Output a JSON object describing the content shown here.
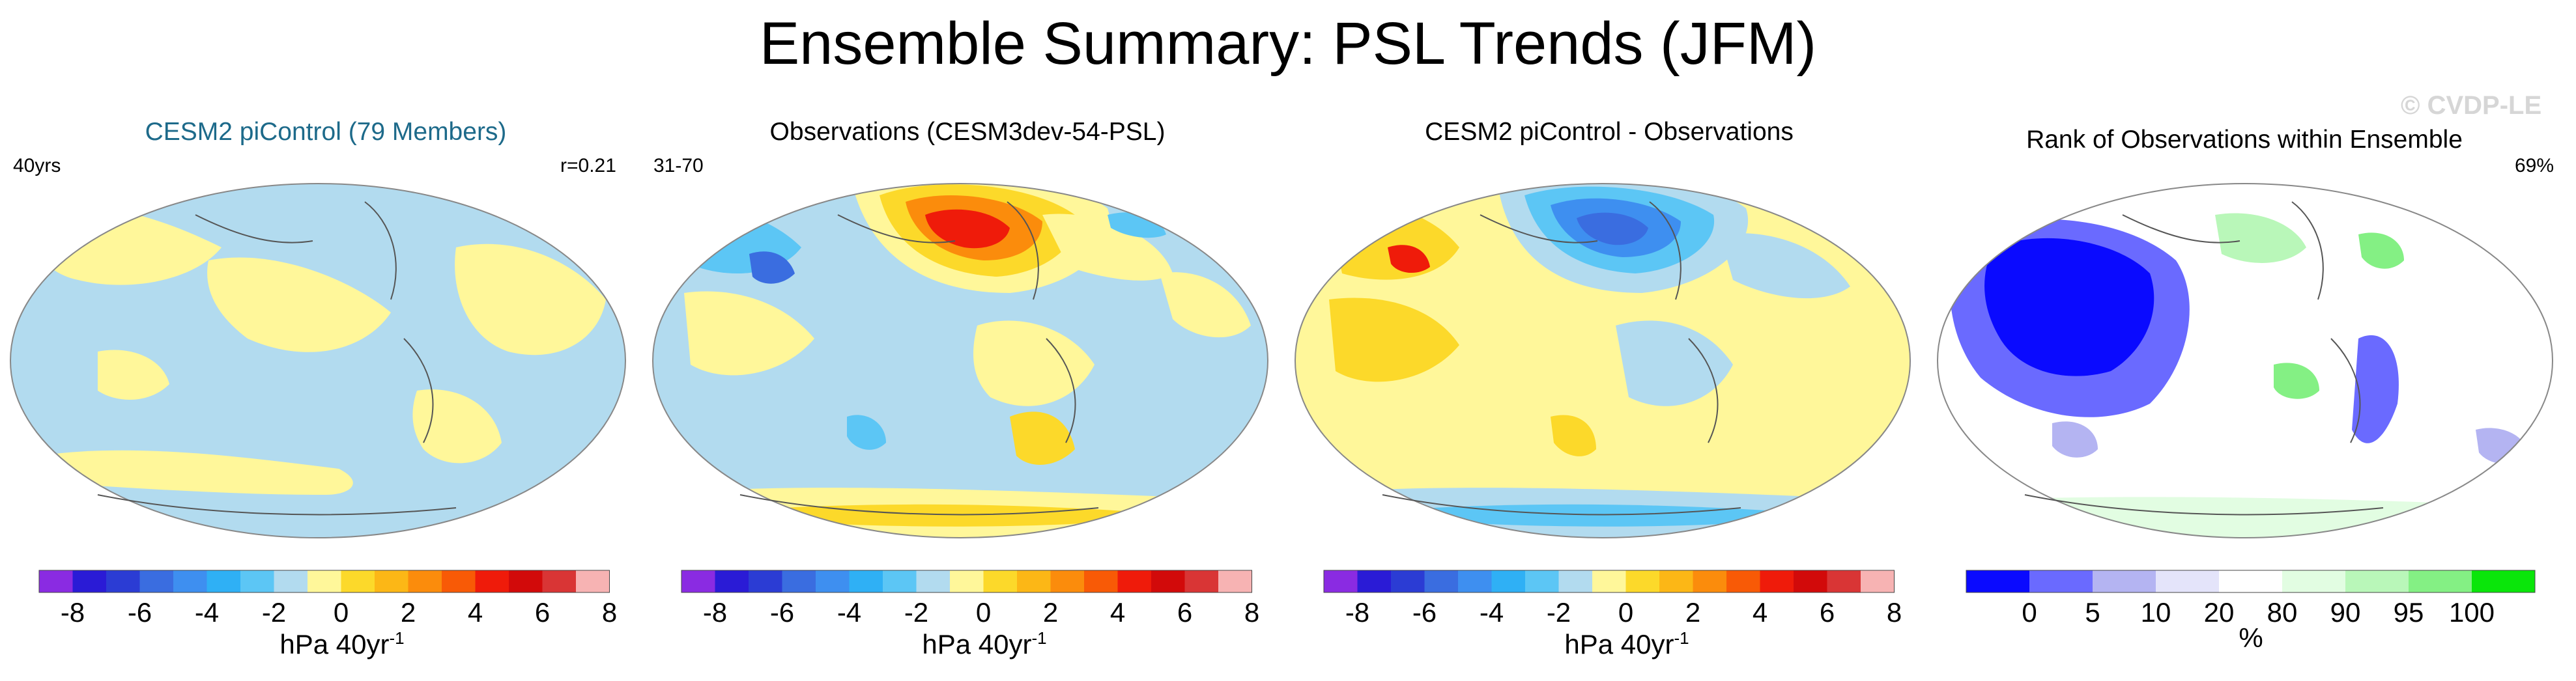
{
  "title": "Ensemble Summary: PSL Trends (JFM)",
  "watermark": "© CVDP-LE",
  "panels": [
    {
      "title": "CESM2 piControl (79 Members)",
      "corner_left": "40yrs",
      "corner_right": "r=0.21"
    },
    {
      "title": "Observations (CESM3dev-54-PSL)",
      "corner_left": "31-70",
      "corner_right": ""
    },
    {
      "title": "CESM2 piControl - Observations",
      "corner_left": "",
      "corner_right": ""
    },
    {
      "title": "Rank of Observations within Ensemble",
      "corner_left": "",
      "corner_right": "69%"
    }
  ],
  "trend_colorbar": {
    "ticks": [
      "-8",
      "-6",
      "-4",
      "-2",
      "0",
      "2",
      "4",
      "6",
      "8"
    ],
    "unit": "hPa 40yr",
    "unit_sup": "-1",
    "colors": [
      "#8a2be2",
      "#2a1bd6",
      "#2b3cd4",
      "#3a6de0",
      "#3e8ff0",
      "#2fb0f5",
      "#5cc6f5",
      "#b2dbef",
      "#fff79a",
      "#fcd92a",
      "#fcb716",
      "#fb8c0c",
      "#f85a06",
      "#ef1b0a",
      "#d20a0a",
      "#d93535",
      "#f7b3b3"
    ]
  },
  "rank_colorbar": {
    "ticks": [
      "0",
      "5",
      "10",
      "20",
      "80",
      "90",
      "95",
      "100"
    ],
    "unit": "%",
    "colors": [
      "#0a0aff",
      "#6a6aff",
      "#b4b4f2",
      "#e4e4fa",
      "#ffffff",
      "#e2fde2",
      "#b9f7b9",
      "#84f084",
      "#0ae60a"
    ]
  }
}
